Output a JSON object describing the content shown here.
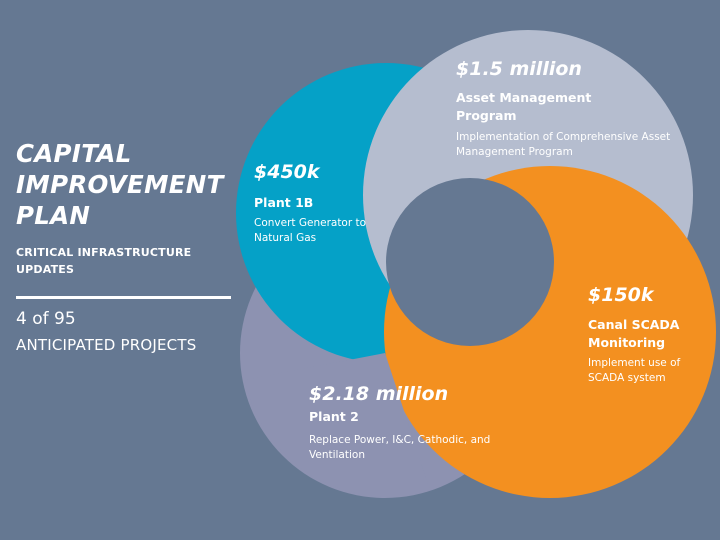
{
  "left_panel": {
    "title_lines": [
      "CAPITAL",
      "IMPROVEMENT",
      "PLAN"
    ],
    "subtitle": "CRITICAL INFRASTRUCTURE UPDATES",
    "count": "4 of 95",
    "count_label": "ANTICIPATED PROJECTS"
  },
  "projects": [
    {
      "amount": "$1.5 million",
      "name": "Asset Management Program",
      "description": "Implementation of Comprehensive Asset Management Program",
      "color": "#b5bdcf"
    },
    {
      "amount": "$450k",
      "name": "Plant 1B",
      "description": "Convert Generator to Natural Gas",
      "color": "#05a1c7"
    },
    {
      "amount": "$150k",
      "name": "Canal SCADA Monitoring",
      "description": "Implement use of SCADA system",
      "color": "#f39020"
    },
    {
      "amount": "$2.18 million",
      "name": "Plant 2",
      "description": "Replace Power, I&C, Cathodic, and Ventilation",
      "color": "#8d92b1"
    }
  ],
  "colors": {
    "background": "#657892",
    "text": "#ffffff"
  }
}
